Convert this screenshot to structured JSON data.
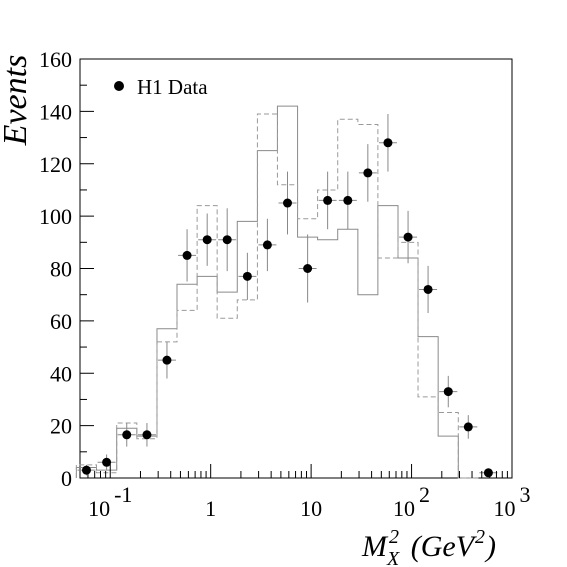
{
  "chart_data": {
    "type": "scatter",
    "xscale": "log",
    "xlim": [
      0.05,
      1000
    ],
    "ylim": [
      0,
      160
    ],
    "xlabel": "M_X^2 (GeV^2)",
    "ylabel": "Events",
    "x_tick_labels": [
      {
        "value": 0.1,
        "base": "10",
        "exp": "-1"
      },
      {
        "value": 1,
        "base": "1",
        "exp": ""
      },
      {
        "value": 10,
        "base": "10",
        "exp": ""
      },
      {
        "value": 100,
        "base": "10",
        "exp": "2"
      },
      {
        "value": 1000,
        "base": "10",
        "exp": "3"
      }
    ],
    "y_ticks": [
      0,
      20,
      40,
      60,
      80,
      100,
      120,
      140,
      160
    ],
    "legend": {
      "placement": "top-left",
      "entries": [
        "H1 Data"
      ]
    },
    "series": [
      {
        "name": "H1 Data",
        "style": "points",
        "points": [
          {
            "x": 0.058,
            "y": 3,
            "err": 2
          },
          {
            "x": 0.092,
            "y": 6,
            "err": 3
          },
          {
            "x": 0.146,
            "y": 16.5,
            "err": 4.5
          },
          {
            "x": 0.232,
            "y": 16.5,
            "err": 4.5
          },
          {
            "x": 0.367,
            "y": 45,
            "err": 7
          },
          {
            "x": 0.582,
            "y": 85,
            "err": 10
          },
          {
            "x": 0.923,
            "y": 91,
            "err": 10
          },
          {
            "x": 1.46,
            "y": 91,
            "err": 12
          },
          {
            "x": 2.32,
            "y": 77,
            "err": 9
          },
          {
            "x": 3.67,
            "y": 89,
            "err": 10
          },
          {
            "x": 5.82,
            "y": 105,
            "err": 12
          },
          {
            "x": 9.23,
            "y": 80,
            "err": 13
          },
          {
            "x": 14.6,
            "y": 106,
            "err": 11
          },
          {
            "x": 23.2,
            "y": 106,
            "err": 11
          },
          {
            "x": 36.7,
            "y": 116.5,
            "err": 11
          },
          {
            "x": 58.2,
            "y": 128,
            "err": 11
          },
          {
            "x": 92.3,
            "y": 92,
            "err": 10
          },
          {
            "x": 146,
            "y": 72,
            "err": 9
          },
          {
            "x": 232,
            "y": 33,
            "err": 6
          },
          {
            "x": 367,
            "y": 19.5,
            "err": 4.5
          },
          {
            "x": 582,
            "y": 2,
            "err": 1.5
          }
        ]
      },
      {
        "style": "histogram-solid",
        "edges": [
          0.046,
          0.073,
          0.116,
          0.184,
          0.292,
          0.462,
          0.733,
          1.16,
          1.84,
          2.92,
          4.62,
          7.33,
          11.6,
          18.4,
          29.2,
          46.2,
          73.3,
          116,
          184,
          292,
          462
        ],
        "values": [
          4,
          3,
          19,
          16,
          57,
          74,
          77,
          71,
          98,
          125,
          142,
          92,
          91,
          95,
          70,
          104,
          84,
          54,
          16,
          0
        ]
      },
      {
        "style": "histogram-dashed",
        "edges": [
          0.046,
          0.073,
          0.116,
          0.184,
          0.292,
          0.462,
          0.733,
          1.16,
          1.84,
          2.92,
          4.62,
          7.33,
          11.6,
          18.4,
          29.2,
          46.2,
          73.3,
          116,
          184,
          292,
          462
        ],
        "values": [
          5,
          2,
          21,
          15,
          52,
          64,
          104,
          61,
          68,
          139,
          112,
          99,
          110,
          137,
          135,
          84,
          90,
          31,
          25,
          0
        ]
      }
    ]
  }
}
